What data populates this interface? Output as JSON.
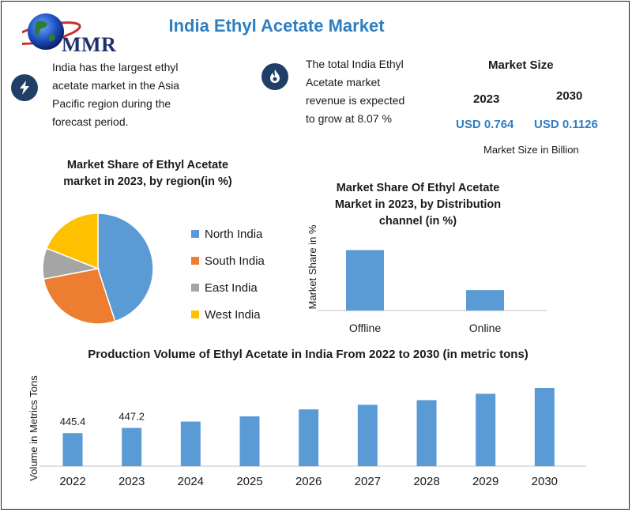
{
  "title": "India Ethyl Acetate Market",
  "logo": {
    "text": "MMR"
  },
  "info": [
    {
      "icon": "lightning-icon",
      "lines": [
        "India has the largest ethyl",
        "acetate market in the Asia",
        "Pacific region during the",
        "forecast period."
      ]
    },
    {
      "icon": "flame-icon",
      "lines": [
        "The total India Ethyl",
        "Acetate market",
        "revenue is expected",
        "to grow at 8.07 %"
      ]
    }
  ],
  "market_size": {
    "title": "Market Size",
    "years": [
      "2023",
      "2030"
    ],
    "values": [
      "USD 0.764",
      "USD 0.1126"
    ],
    "note": "Market Size in Billion"
  },
  "colors": {
    "accent": "#2f7fc1",
    "bar": "#5b9bd5",
    "north": "#5b9bd5",
    "south": "#ed7d31",
    "east": "#a5a5a5",
    "west": "#ffc000"
  },
  "chart_data": [
    {
      "type": "pie",
      "title_lines": [
        "Market Share of Ethyl Acetate",
        "market in 2023, by region(in %)"
      ],
      "categories": [
        "North India",
        "South India",
        "East India",
        "West India"
      ],
      "values": [
        45,
        27,
        9,
        19
      ],
      "colors": [
        "#5b9bd5",
        "#ed7d31",
        "#a5a5a5",
        "#ffc000"
      ],
      "legend": "right"
    },
    {
      "type": "bar",
      "title_lines": [
        "Market Share Of Ethyl Acetate",
        "Market in 2023, by Distribution",
        "channel (in %)"
      ],
      "categories": [
        "Offline",
        "Online"
      ],
      "values": [
        68,
        23
      ],
      "ylabel": "Market Share in %",
      "ylim": [
        0,
        80
      ]
    },
    {
      "type": "bar",
      "title": "Production Volume of Ethyl Acetate in India From 2022 to 2030 (in metric tons)",
      "categories": [
        "2022",
        "2023",
        "2024",
        "2025",
        "2026",
        "2027",
        "2028",
        "2029",
        "2030"
      ],
      "values": [
        445.4,
        447.2,
        449.4,
        451.2,
        453.6,
        455.2,
        456.8,
        459.0,
        461.0
      ],
      "data_labels": [
        "445.4",
        "447.2",
        "",
        "",
        "",
        "",
        "",
        "",
        ""
      ],
      "ylabel": "Volume in Metrics Tons",
      "ylim": [
        434,
        464
      ]
    }
  ]
}
